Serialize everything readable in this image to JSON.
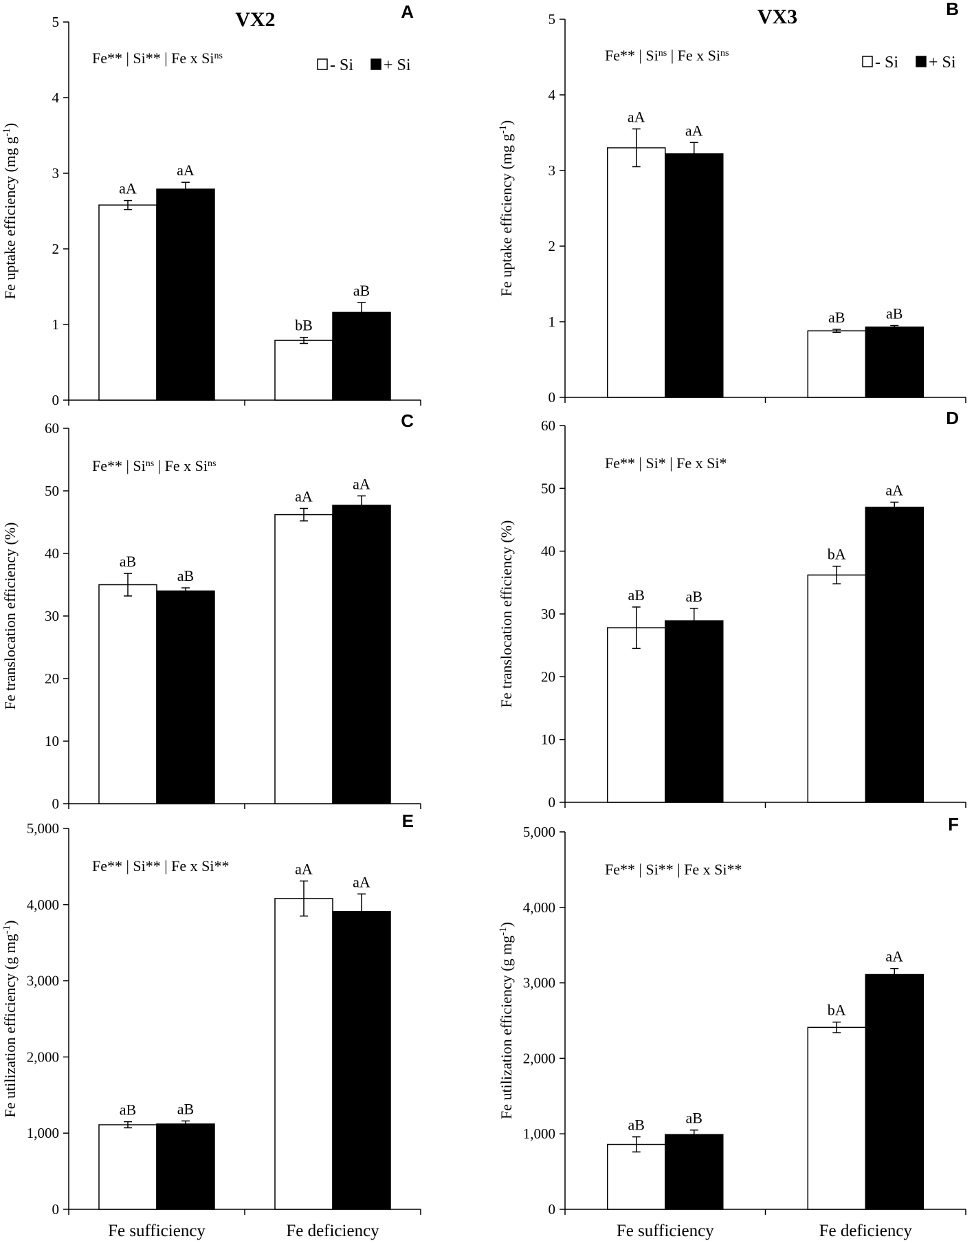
{
  "colors": {
    "minus_si_fill": "#ffffff",
    "plus_si_fill": "#000000",
    "axis": "#000000",
    "text": "#000000"
  },
  "legend": {
    "minus_si": "- Si",
    "plus_si": "+ Si",
    "position": "top-right"
  },
  "categories": [
    "Fe sufficiency",
    "Fe deficiency"
  ],
  "chart_data": [
    {
      "type": "bar",
      "panel": "A",
      "title": "VX2",
      "ylabel": "Fe uptake efficiency (mg g-1)",
      "ylabel_main": "Fe uptake efficiency (mg g",
      "ylabel_sup": "-1",
      "ylabel_end": ")",
      "ylim": [
        0,
        5
      ],
      "yticks": [
        0,
        1,
        2,
        3,
        4,
        5
      ],
      "ytick_labels": [
        "0",
        "1",
        "2",
        "3",
        "4",
        "5"
      ],
      "stats": [
        {
          "text": "Fe** | Si** | Fe x Si",
          "sup": "ns"
        }
      ],
      "show_legend": true,
      "categories": [
        "Fe sufficiency",
        "Fe deficiency"
      ],
      "series": [
        {
          "name": "- Si",
          "values": [
            2.58,
            0.79
          ],
          "errors": [
            0.06,
            0.04
          ],
          "labels": [
            "aA",
            "bB"
          ]
        },
        {
          "name": "+ Si",
          "values": [
            2.79,
            1.16
          ],
          "errors": [
            0.09,
            0.13
          ],
          "labels": [
            "aA",
            "aB"
          ]
        }
      ]
    },
    {
      "type": "bar",
      "panel": "B",
      "title": "VX3",
      "ylabel": "Fe uptake efficiency (mg g-1)",
      "ylabel_main": "Fe uptake efficiency (mg g",
      "ylabel_sup": "-1",
      "ylabel_end": ")",
      "ylim": [
        0,
        5
      ],
      "yticks": [
        0,
        1,
        2,
        3,
        4,
        5
      ],
      "ytick_labels": [
        "0",
        "1",
        "2",
        "3",
        "4",
        "5"
      ],
      "stats": [
        {
          "text": "Fe** | Si",
          "sup": "ns"
        },
        {
          "text": " | Fe x Si",
          "sup": "ns"
        }
      ],
      "show_legend": true,
      "categories": [
        "Fe sufficiency",
        "Fe deficiency"
      ],
      "series": [
        {
          "name": "- Si",
          "values": [
            3.3,
            0.88
          ],
          "errors": [
            0.25,
            0.02
          ],
          "labels": [
            "aA",
            "aB"
          ]
        },
        {
          "name": "+ Si",
          "values": [
            3.22,
            0.93
          ],
          "errors": [
            0.15,
            0.02
          ],
          "labels": [
            "aA",
            "aB"
          ]
        }
      ]
    },
    {
      "type": "bar",
      "panel": "C",
      "title": "",
      "ylabel": "Fe translocation efficiency (%)",
      "ylabel_main": "Fe translocation efficiency (%)",
      "ylabel_sup": "",
      "ylabel_end": "",
      "ylim": [
        0,
        60
      ],
      "yticks": [
        0,
        10,
        20,
        30,
        40,
        50,
        60
      ],
      "ytick_labels": [
        "0",
        "10",
        "20",
        "30",
        "40",
        "50",
        "60"
      ],
      "stats": [
        {
          "text": "Fe** | Si",
          "sup": "ns"
        },
        {
          "text": " | Fe x Si",
          "sup": "ns"
        }
      ],
      "show_legend": false,
      "categories": [
        "Fe sufficiency",
        "Fe deficiency"
      ],
      "series": [
        {
          "name": "- Si",
          "values": [
            35.0,
            46.2
          ],
          "errors": [
            1.8,
            1.0
          ],
          "labels": [
            "aB",
            "aA"
          ]
        },
        {
          "name": "+ Si",
          "values": [
            34.0,
            47.7
          ],
          "errors": [
            0.5,
            1.5
          ],
          "labels": [
            "aB",
            "aA"
          ]
        }
      ]
    },
    {
      "type": "bar",
      "panel": "D",
      "title": "",
      "ylabel": "Fe translocation efficiency (%)",
      "ylabel_main": "Fe translocation efficiency (%)",
      "ylabel_sup": "",
      "ylabel_end": "",
      "ylim": [
        0,
        60
      ],
      "yticks": [
        0,
        10,
        20,
        30,
        40,
        50,
        60
      ],
      "ytick_labels": [
        "0",
        "10",
        "20",
        "30",
        "40",
        "50",
        "60"
      ],
      "stats": [
        {
          "text": "Fe** | Si* | Fe x Si*",
          "sup": ""
        }
      ],
      "show_legend": false,
      "categories": [
        "Fe sufficiency",
        "Fe deficiency"
      ],
      "series": [
        {
          "name": "- Si",
          "values": [
            27.8,
            36.2
          ],
          "errors": [
            3.3,
            1.4
          ],
          "labels": [
            "aB",
            "bA"
          ]
        },
        {
          "name": "+ Si",
          "values": [
            28.9,
            47.0
          ],
          "errors": [
            2.0,
            0.8
          ],
          "labels": [
            "aB",
            "aA"
          ]
        }
      ]
    },
    {
      "type": "bar",
      "panel": "E",
      "title": "",
      "ylabel": "Fe utilization efficiency (g mg-1)",
      "ylabel_main": "Fe utilization efficiency (g mg",
      "ylabel_sup": "-1",
      "ylabel_end": ")",
      "ylim": [
        0,
        5000
      ],
      "yticks": [
        0,
        1000,
        2000,
        3000,
        4000,
        5000
      ],
      "ytick_labels": [
        "0",
        "1,000",
        "2,000",
        "3,000",
        "4,000",
        "5,000"
      ],
      "stats": [
        {
          "text": "Fe** | Si** | Fe x Si**",
          "sup": ""
        }
      ],
      "show_legend": false,
      "categories": [
        "Fe sufficiency",
        "Fe deficiency"
      ],
      "series": [
        {
          "name": "- Si",
          "values": [
            1110,
            4080
          ],
          "errors": [
            40,
            230
          ],
          "labels": [
            "aB",
            "aA"
          ]
        },
        {
          "name": "+ Si",
          "values": [
            1120,
            3910
          ],
          "errors": [
            40,
            230
          ],
          "labels": [
            "aB",
            "aA"
          ]
        }
      ]
    },
    {
      "type": "bar",
      "panel": "F",
      "title": "",
      "ylabel": "Fe utilization efficiency (g mg-1)",
      "ylabel_main": "Fe utilization efficiency (g mg",
      "ylabel_sup": "-1",
      "ylabel_end": ")",
      "ylim": [
        0,
        5000
      ],
      "yticks": [
        0,
        1000,
        2000,
        3000,
        4000,
        5000
      ],
      "ytick_labels": [
        "0",
        "1,000",
        "2,000",
        "3,000",
        "4,000",
        "5,000"
      ],
      "stats": [
        {
          "text": "Fe** | Si** | Fe x Si**",
          "sup": ""
        }
      ],
      "show_legend": false,
      "categories": [
        "Fe sufficiency",
        "Fe deficiency"
      ],
      "series": [
        {
          "name": "- Si",
          "values": [
            860,
            2410
          ],
          "errors": [
            100,
            70
          ],
          "labels": [
            "aB",
            "bA"
          ]
        },
        {
          "name": "+ Si",
          "values": [
            990,
            3110
          ],
          "errors": [
            60,
            80
          ],
          "labels": [
            "aB",
            "aA"
          ]
        }
      ]
    }
  ]
}
